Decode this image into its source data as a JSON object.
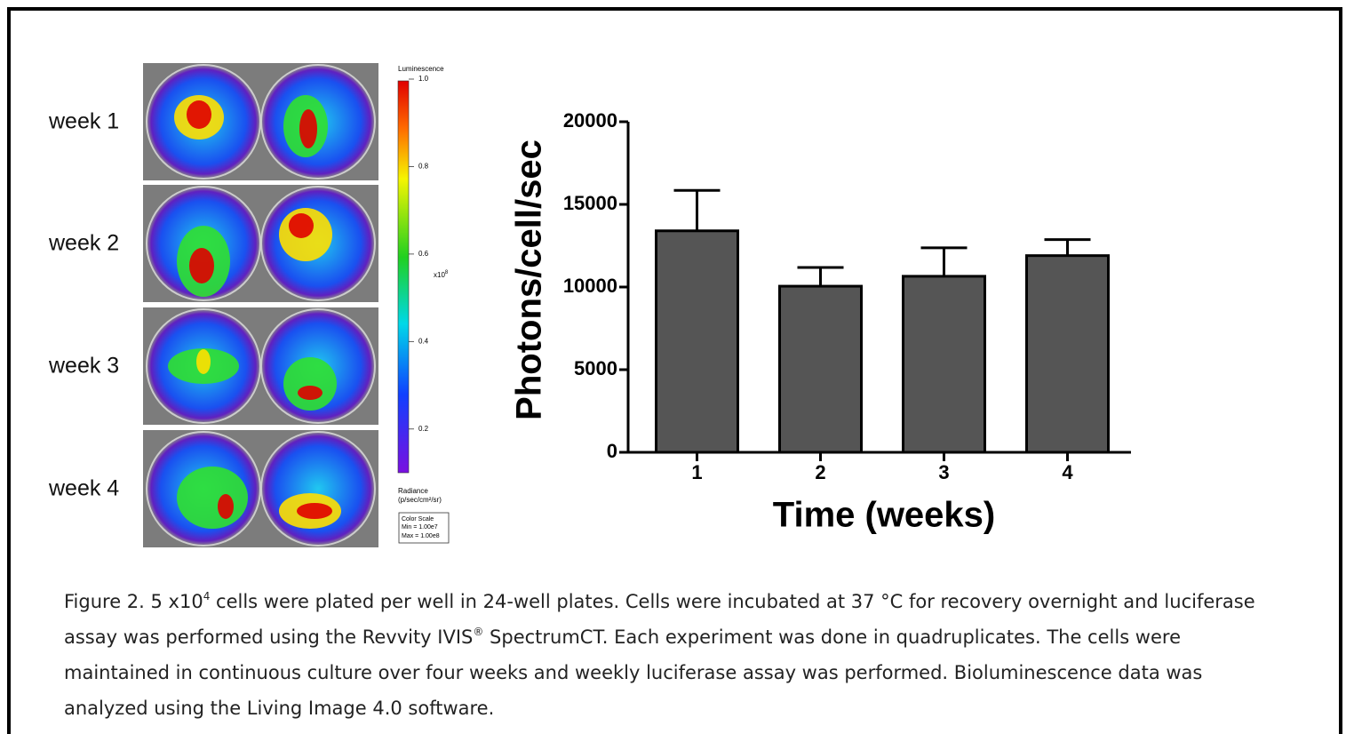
{
  "images": {
    "labels": [
      "week 1",
      "week 2",
      "week 3",
      "week 4"
    ]
  },
  "color_scale": {
    "title": "Luminescence",
    "lim": [
      0.1,
      1.0
    ],
    "ticks": [
      {
        "value": 1,
        "label": "1.0"
      },
      0.8,
      0.6,
      0.4,
      0.2
    ],
    "multiplier": "x10",
    "multiplier_exponent": "8",
    "unit_title": "Radiance",
    "unit": "(p/sec/cm²/sr)",
    "box": [
      "Color Scale",
      "Min = 1.00e7",
      "Max = 1.00e8"
    ]
  },
  "chart_data": {
    "type": "bar",
    "categories": [
      "1",
      "2",
      "3",
      "4"
    ],
    "values": [
      13400,
      10050,
      10650,
      11900
    ],
    "errors": [
      2450,
      1130,
      1720,
      970
    ],
    "color": "#555555",
    "ylim": [
      0,
      20000
    ],
    "yticks": [
      0,
      5000,
      10000,
      15000,
      20000
    ],
    "xlabel": "Time (weeks)",
    "ylabel": "Photons/cell/sec"
  },
  "caption": {
    "parts": [
      "Figure 2. 5 x10",
      "4",
      " cells were plated per well in 24-well plates. Cells were incubated at 37 °C for recovery overnight and luciferase assay was performed using the Revvity IVIS",
      "®",
      " SpectrumCT. Each experiment was done in quadruplicates. The cells were maintained in continuous culture over four weeks and weekly luciferase assay was performed. Bioluminescence data was analyzed using the Living Image 4.0 software."
    ]
  }
}
